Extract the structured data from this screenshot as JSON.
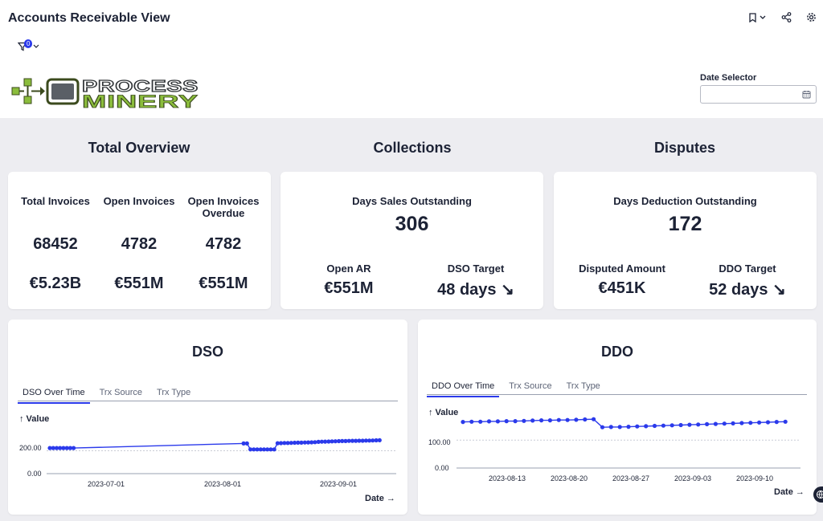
{
  "header": {
    "title": "Accounts Receivable View",
    "filter_count": "0",
    "icons": [
      "bookmark-icon",
      "chevron-down-icon",
      "share-icon",
      "gear-icon",
      "filter-icon"
    ]
  },
  "logo": {
    "line1": "PROCESS",
    "line2": "MINERY"
  },
  "date_selector": {
    "label": "Date Selector",
    "value": ""
  },
  "sections": {
    "total": "Total Overview",
    "collections": "Collections",
    "disputes": "Disputes"
  },
  "total_overview": {
    "labels": [
      "Total Invoices",
      "Open Invoices",
      "Open Invoices Overdue"
    ],
    "counts": [
      "68452",
      "4782",
      "4782"
    ],
    "amounts": [
      "€5.23B",
      "€551M",
      "€551M"
    ]
  },
  "collections": {
    "headline_label": "Days Sales Outstanding",
    "headline_value": "306",
    "open_ar_label": "Open AR",
    "open_ar_value": "€551M",
    "target_label": "DSO Target",
    "target_value": "48 days ↘"
  },
  "disputes": {
    "headline_label": "Days Deduction Outstanding",
    "headline_value": "172",
    "amount_label": "Disputed Amount",
    "amount_value": "€451K",
    "target_label": "DDO Target",
    "target_value": "52 days ↘"
  },
  "dso_chart": {
    "title": "DSO",
    "tabs": [
      "DSO Over Time",
      "Trx Source",
      "Trx Type"
    ],
    "y_axis_title": "↑ Value",
    "y_ticks": [
      "200.00",
      "0.00"
    ],
    "x_ticks": [
      "2023-07-01",
      "2023-08-01",
      "2023-09-01"
    ],
    "x_axis_title": "Date →"
  },
  "ddo_chart": {
    "title": "DDO",
    "tabs": [
      "DDO Over Time",
      "Trx Source",
      "Trx Type"
    ],
    "y_axis_title": "↑ Value",
    "y_ticks": [
      "100.00",
      "0.00"
    ],
    "x_ticks": [
      "2023-08-13",
      "2023-08-20",
      "2023-08-27",
      "2023-09-03",
      "2023-09-10"
    ],
    "x_axis_title": "Date →"
  },
  "chart_data": [
    {
      "type": "line",
      "title": "DSO",
      "xlabel": "Date",
      "ylabel": "Value",
      "x_range": [
        "2023-06-10",
        "2023-09-18"
      ],
      "ylim": [
        0,
        400
      ],
      "grid": true,
      "series": [
        {
          "color": "#2b3aeb",
          "points": [
            [
              "2023-06-10",
              224
            ],
            [
              "2023-06-11",
              224
            ],
            [
              "2023-06-12",
              224
            ],
            [
              "2023-06-13",
              224
            ],
            [
              "2023-06-14",
              224
            ],
            [
              "2023-06-15",
              224
            ],
            [
              "2023-06-16",
              224
            ],
            [
              "2023-06-17",
              224
            ],
            [
              "2023-08-06",
              264
            ],
            [
              "2023-08-07",
              264
            ],
            [
              "2023-08-08",
              212
            ],
            [
              "2023-08-09",
              212
            ],
            [
              "2023-08-10",
              212
            ],
            [
              "2023-08-11",
              212
            ],
            [
              "2023-08-12",
              212
            ],
            [
              "2023-08-13",
              212
            ],
            [
              "2023-08-14",
              212
            ],
            [
              "2023-08-15",
              212
            ],
            [
              "2023-08-16",
              266
            ],
            [
              "2023-08-17",
              267
            ],
            [
              "2023-08-18",
              268
            ],
            [
              "2023-08-19",
              268
            ],
            [
              "2023-08-20",
              269
            ],
            [
              "2023-08-21",
              270
            ],
            [
              "2023-08-22",
              271
            ],
            [
              "2023-08-23",
              271
            ],
            [
              "2023-08-24",
              272
            ],
            [
              "2023-08-25",
              273
            ],
            [
              "2023-08-26",
              274
            ],
            [
              "2023-08-27",
              275
            ],
            [
              "2023-08-28",
              278
            ],
            [
              "2023-08-29",
              279
            ],
            [
              "2023-08-30",
              280
            ],
            [
              "2023-08-31",
              281
            ],
            [
              "2023-09-01",
              282
            ],
            [
              "2023-09-02",
              283
            ],
            [
              "2023-09-03",
              284
            ],
            [
              "2023-09-04",
              285
            ],
            [
              "2023-09-05",
              285
            ],
            [
              "2023-09-06",
              286
            ],
            [
              "2023-09-07",
              287
            ],
            [
              "2023-09-08",
              287
            ],
            [
              "2023-09-09",
              288
            ],
            [
              "2023-09-10",
              288
            ],
            [
              "2023-09-11",
              289
            ],
            [
              "2023-09-12",
              289
            ],
            [
              "2023-09-13",
              290
            ],
            [
              "2023-09-14",
              291
            ],
            [
              "2023-09-15",
              292
            ]
          ]
        }
      ]
    },
    {
      "type": "line",
      "title": "DDO",
      "xlabel": "Date",
      "ylabel": "Value",
      "x_range": [
        "2023-08-08",
        "2023-09-15"
      ],
      "ylim": [
        0,
        210
      ],
      "grid": true,
      "series": [
        {
          "color": "#2b3aeb",
          "points": [
            [
              "2023-08-08",
              165
            ],
            [
              "2023-08-09",
              166
            ],
            [
              "2023-08-10",
              166
            ],
            [
              "2023-08-11",
              167
            ],
            [
              "2023-08-12",
              167
            ],
            [
              "2023-08-13",
              168
            ],
            [
              "2023-08-14",
              168
            ],
            [
              "2023-08-15",
              169
            ],
            [
              "2023-08-16",
              170
            ],
            [
              "2023-08-17",
              171
            ],
            [
              "2023-08-18",
              171
            ],
            [
              "2023-08-19",
              172
            ],
            [
              "2023-08-20",
              172
            ],
            [
              "2023-08-21",
              173
            ],
            [
              "2023-08-22",
              174
            ],
            [
              "2023-08-23",
              175
            ],
            [
              "2023-08-24",
              146
            ],
            [
              "2023-08-25",
              147
            ],
            [
              "2023-08-26",
              147
            ],
            [
              "2023-08-27",
              148
            ],
            [
              "2023-08-28",
              149
            ],
            [
              "2023-08-29",
              150
            ],
            [
              "2023-08-30",
              151
            ],
            [
              "2023-08-31",
              152
            ],
            [
              "2023-09-01",
              153
            ],
            [
              "2023-09-02",
              154
            ],
            [
              "2023-09-03",
              155
            ],
            [
              "2023-09-04",
              156
            ],
            [
              "2023-09-05",
              157
            ],
            [
              "2023-09-06",
              158
            ],
            [
              "2023-09-07",
              159
            ],
            [
              "2023-09-08",
              160
            ],
            [
              "2023-09-09",
              161
            ],
            [
              "2023-09-10",
              162
            ],
            [
              "2023-09-11",
              163
            ],
            [
              "2023-09-12",
              164
            ],
            [
              "2023-09-13",
              165
            ],
            [
              "2023-09-14",
              166
            ]
          ]
        }
      ]
    }
  ]
}
